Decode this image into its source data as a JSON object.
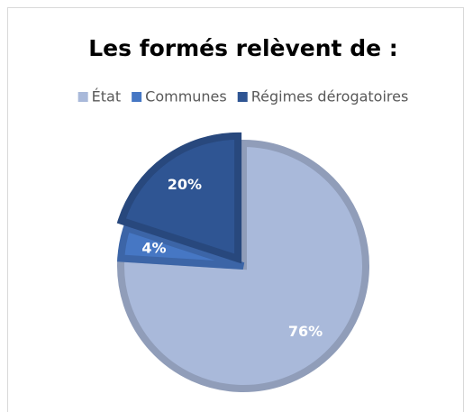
{
  "chart_data": {
    "type": "pie",
    "title": "Les formés relèvent de :",
    "categories": [
      "État",
      "Communes",
      "Régimes dérogatoires"
    ],
    "values": [
      76,
      4,
      20
    ],
    "value_labels": [
      "76%",
      "4%",
      "20%"
    ],
    "colors": [
      "#a9b9da",
      "#4677c4",
      "#2f5593"
    ],
    "legend": "top"
  }
}
